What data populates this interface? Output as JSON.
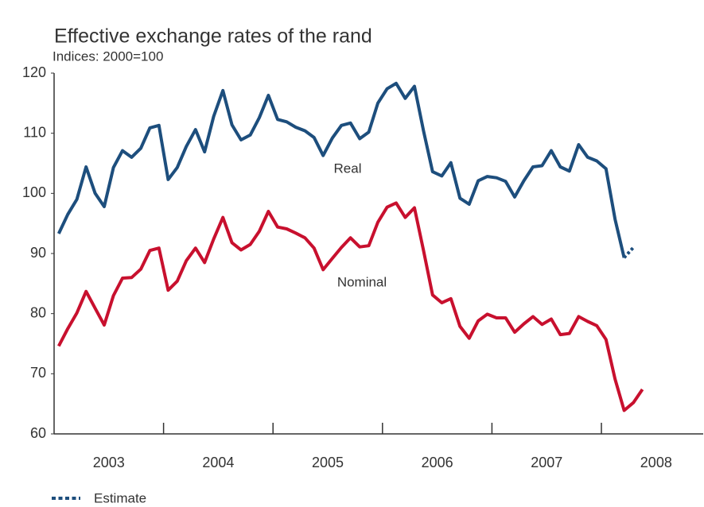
{
  "chart_data": {
    "type": "line",
    "title": "Effective exchange rates of the rand",
    "subtitle": "Indices: 2000=100",
    "x": [
      2003.042,
      2003.125,
      2003.208,
      2003.292,
      2003.375,
      2003.458,
      2003.542,
      2003.625,
      2003.708,
      2003.792,
      2003.875,
      2003.958,
      2004.042,
      2004.125,
      2004.208,
      2004.292,
      2004.375,
      2004.458,
      2004.542,
      2004.625,
      2004.708,
      2004.792,
      2004.875,
      2004.958,
      2005.042,
      2005.125,
      2005.208,
      2005.292,
      2005.375,
      2005.458,
      2005.542,
      2005.625,
      2005.708,
      2005.792,
      2005.875,
      2005.958,
      2006.042,
      2006.125,
      2006.208,
      2006.292,
      2006.375,
      2006.458,
      2006.542,
      2006.625,
      2006.708,
      2006.792,
      2006.875,
      2006.958,
      2007.042,
      2007.125,
      2007.208,
      2007.292,
      2007.375,
      2007.458,
      2007.542,
      2007.625,
      2007.708,
      2007.792,
      2007.875,
      2007.958,
      2008.042,
      2008.125,
      2008.208,
      2008.292,
      2008.375
    ],
    "series": [
      {
        "name": "Real",
        "color": "#1d4e7d",
        "style": "solid",
        "values": [
          93.3,
          96.5,
          99,
          104.4,
          100,
          97.8,
          104.3,
          107.1,
          106,
          107.5,
          110.9,
          111.3,
          102.3,
          104.3,
          107.8,
          110.6,
          106.9,
          112.8,
          117.1,
          111.4,
          108.9,
          109.7,
          112.6,
          116.3,
          112.3,
          111.9,
          111,
          110.4,
          109.3,
          106.3,
          109.2,
          111.3,
          111.7,
          109.1,
          110.2,
          115,
          117.4,
          118.3,
          115.8,
          117.8,
          110.4,
          103.6,
          102.9,
          105.1,
          99.2,
          98.2,
          102.1,
          102.8,
          102.6,
          102,
          99.4,
          102.1,
          104.4,
          104.6,
          107.1,
          104.4,
          103.7,
          108.1,
          106,
          105.4,
          104.1,
          95.7,
          89.3,
          null,
          null
        ]
      },
      {
        "name": "Nominal",
        "color": "#c8102e",
        "style": "solid",
        "values": [
          74.6,
          77.5,
          80.1,
          83.7,
          80.9,
          78.1,
          83,
          85.9,
          86,
          87.4,
          90.5,
          90.9,
          83.9,
          85.4,
          88.8,
          90.9,
          88.5,
          92.4,
          96,
          91.8,
          90.6,
          91.5,
          93.7,
          97,
          94.4,
          94.1,
          93.4,
          92.6,
          90.9,
          87.3,
          89.2,
          91,
          92.6,
          91.1,
          91.3,
          95.2,
          97.7,
          98.4,
          96,
          97.6,
          90.5,
          83.1,
          81.8,
          82.5,
          77.9,
          75.9,
          78.8,
          79.9,
          79.3,
          79.3,
          76.9,
          78.3,
          79.5,
          78.2,
          79.1,
          76.5,
          76.7,
          79.5,
          78.7,
          78,
          75.7,
          69.1,
          63.9,
          65.2,
          67.4
        ]
      },
      {
        "name": "Estimate",
        "color": "#1d4e7d",
        "style": "dotted",
        "values": [
          null,
          null,
          null,
          null,
          null,
          null,
          null,
          null,
          null,
          null,
          null,
          null,
          null,
          null,
          null,
          null,
          null,
          null,
          null,
          null,
          null,
          null,
          null,
          null,
          null,
          null,
          null,
          null,
          null,
          null,
          null,
          null,
          null,
          null,
          null,
          null,
          null,
          null,
          null,
          null,
          null,
          null,
          null,
          null,
          null,
          null,
          null,
          null,
          null,
          null,
          null,
          null,
          null,
          null,
          null,
          null,
          null,
          null,
          null,
          null,
          null,
          null,
          89.3,
          91,
          null
        ]
      }
    ],
    "xlim": [
      2003,
      2008.93
    ],
    "xticks": [
      {
        "value": 2003.5,
        "label": "2003"
      },
      {
        "value": 2004.5,
        "label": "2004"
      },
      {
        "value": 2005.5,
        "label": "2005"
      },
      {
        "value": 2006.5,
        "label": "2006"
      },
      {
        "value": 2007.5,
        "label": "2007"
      },
      {
        "value": 2008.5,
        "label": "2008"
      }
    ],
    "ylim": [
      60,
      120
    ],
    "yticks": [
      60,
      70,
      80,
      90,
      100,
      110,
      120
    ],
    "grid": false
  }
}
